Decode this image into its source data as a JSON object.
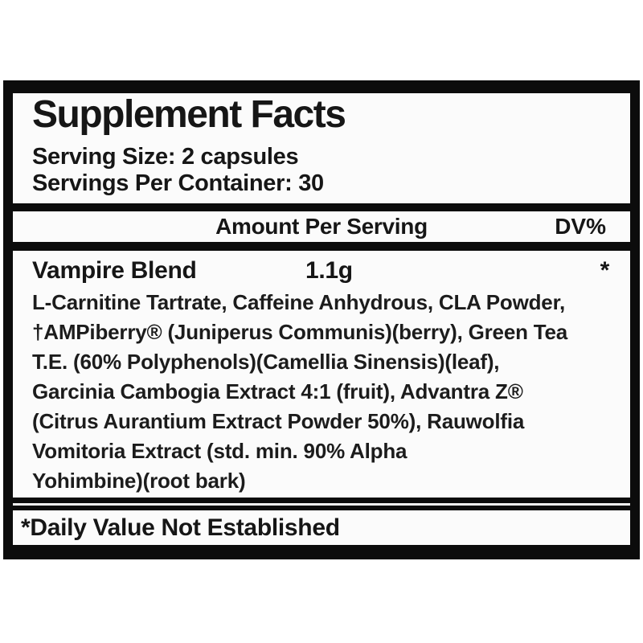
{
  "label": {
    "title": "Supplement Facts",
    "serving_size": "Serving Size: 2 capsules",
    "servings_per_container": "Servings Per Container: 30",
    "columns": {
      "amount_header": "Amount Per Serving",
      "dv_header": "DV%"
    },
    "blend": {
      "name": "Vampire Blend",
      "amount": "1.1g",
      "dv": "*"
    },
    "ingredients_text": "L-Carnitine Tartrate, Caffeine Anhydrous, CLA Powder,\n†AMPiberry® (Juniperus Communis)(berry), Green Tea\nT.E. (60% Polyphenols)(Camellia Sinensis)(leaf),\nGarcinia Cambogia Extract 4:1 (fruit), Advantra Z®\n(Citrus Aurantium Extract Powder 50%), Rauwolfia\nVomitoria Extract (std. min. 90% Alpha\nYohimbine)(root bark)",
    "footnote": "*Daily Value Not Established",
    "colors": {
      "border_black": "#0c0c0c",
      "panel_white": "#fbfbfb",
      "text": "#161616"
    }
  }
}
